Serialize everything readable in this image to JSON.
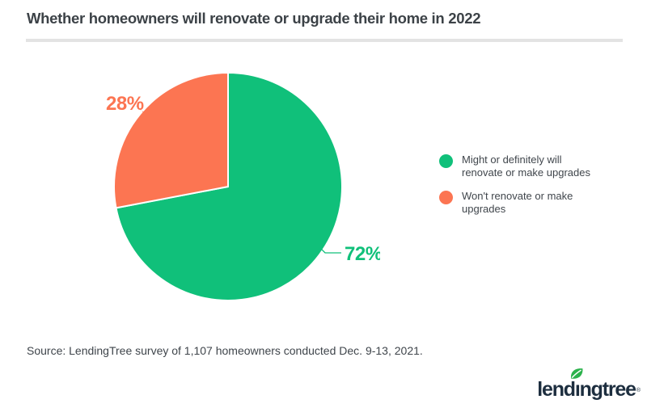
{
  "header": {
    "title": "Whether homeowners will renovate or upgrade their home in 2022"
  },
  "chart_data": {
    "type": "pie",
    "title": "Whether homeowners will renovate or upgrade their home in 2022",
    "slices": [
      {
        "label": "Might or definitely will renovate or make upgrades",
        "value": 72,
        "data_label": "72%",
        "color": "#10c07a"
      },
      {
        "label": "Won't renovate or make upgrades",
        "value": 28,
        "data_label": "28%",
        "color": "#fc7552"
      }
    ],
    "start_angle_deg": 0,
    "direction": "clockwise",
    "legend_position": "right",
    "data_labels_shown": true,
    "slice_separator_color": "#ffffff"
  },
  "source_note": "Source: LendingTree survey of 1,107 homeowners conducted Dec. 9-13, 2021.",
  "logo": {
    "name": "lendingtree",
    "pre": "lend",
    "dotless_i": "ı",
    "post": "ngtree",
    "registered": "®",
    "navy": "#1d2e3f",
    "leaf_green": "#2bb24c"
  },
  "colors": {
    "title_text": "#3c4247",
    "body_text": "#40464c",
    "divider": "#e3e3e3"
  }
}
